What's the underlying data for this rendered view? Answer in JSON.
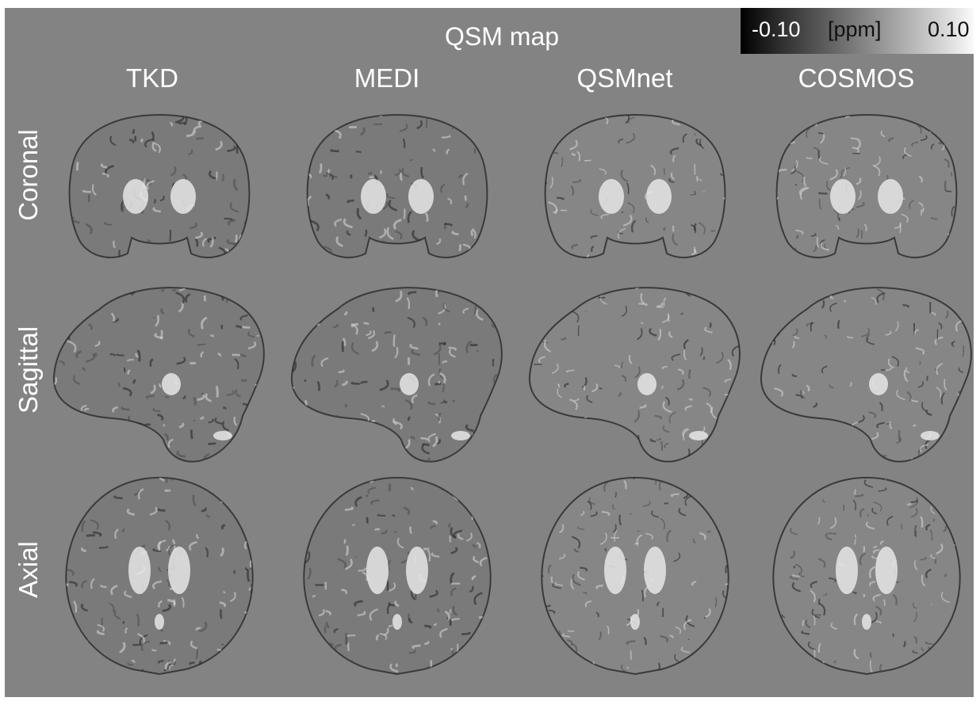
{
  "figure": {
    "title": "QSM map",
    "colorbar": {
      "min_label": "-0.10",
      "unit_label": "[ppm]",
      "max_label": "0.10"
    },
    "columns": [
      "TKD",
      "MEDI",
      "QSMnet",
      "COSMOS"
    ],
    "rows": [
      "Coronal",
      "Sagittal",
      "Axial"
    ]
  },
  "colors": {
    "panel_background": "#838383",
    "text": "#ffffff"
  }
}
